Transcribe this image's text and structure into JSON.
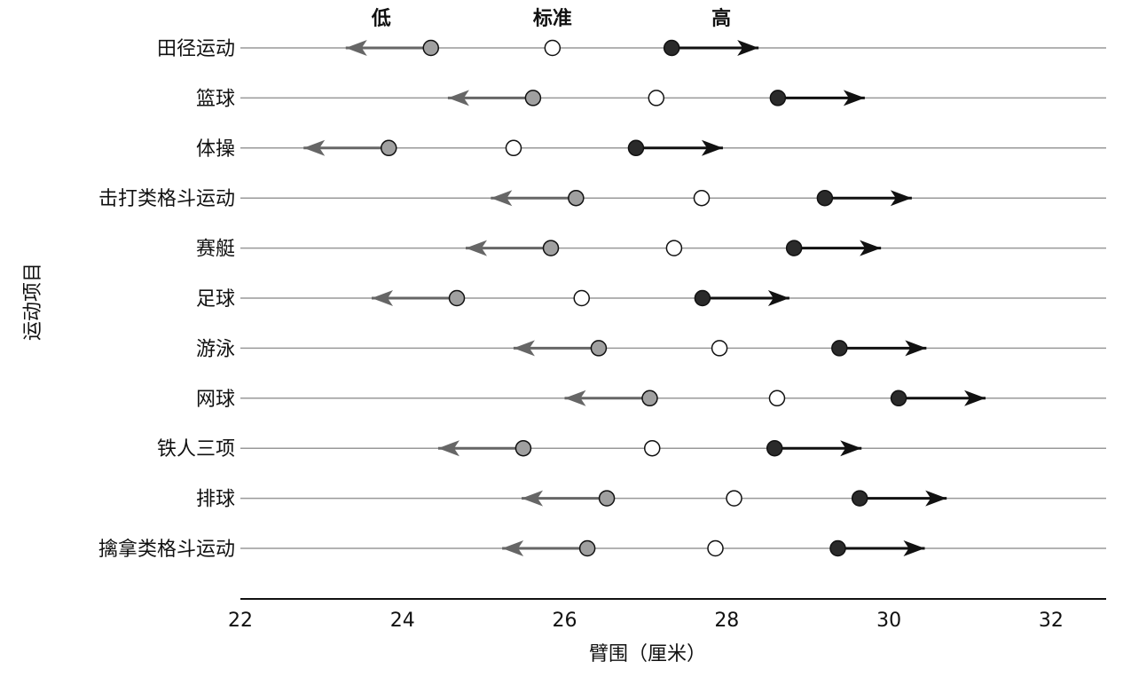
{
  "chart_data": {
    "type": "dot",
    "x_label": "臂围（厘米）",
    "y_label": "运动项目",
    "categories": [
      "田径运动",
      "篮球",
      "体操",
      "击打类格斗运动",
      "赛艇",
      "足球",
      "游泳",
      "网球",
      "铁人三项",
      "排球",
      "擒拿类格斗运动"
    ],
    "series": [
      {
        "name": "低",
        "color": "#a0a0a0",
        "arrow_color": "#666666",
        "values": [
          24.35,
          25.61,
          23.83,
          26.14,
          25.83,
          24.67,
          26.42,
          27.05,
          25.49,
          26.52,
          26.28
        ]
      },
      {
        "name": "标准",
        "color": "#ffffff",
        "values": [
          25.85,
          27.13,
          25.37,
          27.69,
          27.35,
          26.21,
          27.91,
          28.62,
          27.08,
          28.09,
          27.86
        ]
      },
      {
        "name": "高",
        "color": "#2a2a2a",
        "arrow_color": "#111111",
        "values": [
          27.32,
          28.63,
          26.88,
          29.21,
          28.83,
          27.7,
          29.39,
          30.12,
          28.59,
          29.64,
          29.37
        ]
      }
    ],
    "xlim": [
      22,
      32.68
    ],
    "xticks": [
      22,
      24,
      26,
      28,
      30,
      32
    ]
  }
}
